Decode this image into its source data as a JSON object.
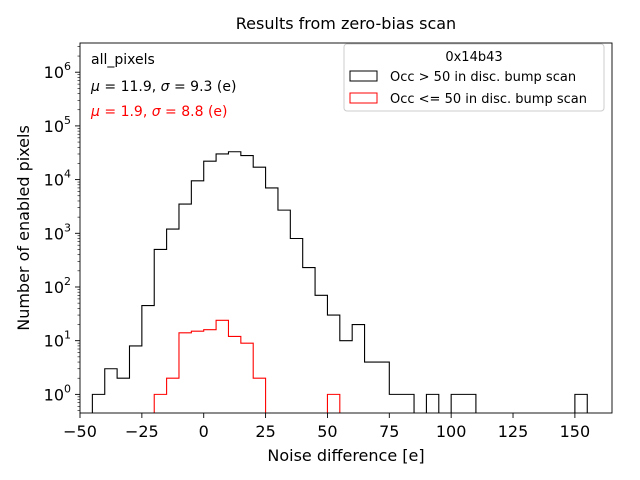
{
  "chart_data": {
    "type": "histogram",
    "title": "Results from zero-bias scan",
    "xlabel": "Noise difference [e]",
    "ylabel": "Number of enabled pixels",
    "xlim": [
      -50,
      165
    ],
    "ylim": [
      0.45,
      3500000
    ],
    "yscale": "log",
    "bin_width": 5,
    "x_ticks": [
      -50,
      -25,
      0,
      25,
      50,
      75,
      100,
      125,
      150
    ],
    "x_tick_labels": [
      "−50",
      "−25",
      "0",
      "25",
      "50",
      "75",
      "100",
      "125",
      "150"
    ],
    "y_ticks": [
      1,
      10,
      100,
      1000,
      10000,
      100000,
      1000000
    ],
    "y_tick_labels": [
      {
        "base": "10",
        "exp": "0"
      },
      {
        "base": "10",
        "exp": "1"
      },
      {
        "base": "10",
        "exp": "2"
      },
      {
        "base": "10",
        "exp": "3"
      },
      {
        "base": "10",
        "exp": "4"
      },
      {
        "base": "10",
        "exp": "5"
      },
      {
        "base": "10",
        "exp": "6"
      }
    ],
    "series": [
      {
        "name": "Occ > 50 in disc. bump scan",
        "color": "#000000",
        "bins": [
          [
            -45,
            1
          ],
          [
            -40,
            3
          ],
          [
            -35,
            2
          ],
          [
            -30,
            8
          ],
          [
            -25,
            45
          ],
          [
            -20,
            500
          ],
          [
            -15,
            1200
          ],
          [
            -10,
            3500
          ],
          [
            -5,
            9500
          ],
          [
            0,
            22000
          ],
          [
            5,
            30000
          ],
          [
            10,
            33000
          ],
          [
            15,
            28000
          ],
          [
            20,
            17000
          ],
          [
            25,
            7000
          ],
          [
            30,
            2700
          ],
          [
            35,
            800
          ],
          [
            40,
            230
          ],
          [
            45,
            70
          ],
          [
            50,
            30
          ],
          [
            55,
            10
          ],
          [
            60,
            20
          ],
          [
            65,
            4
          ],
          [
            70,
            4
          ],
          [
            75,
            1
          ],
          [
            80,
            1
          ],
          [
            90,
            1
          ],
          [
            100,
            1
          ],
          [
            105,
            1
          ],
          [
            150,
            1
          ]
        ]
      },
      {
        "name": "Occ <= 50 in disc. bump scan",
        "color": "#ff0000",
        "bins": [
          [
            -20,
            1
          ],
          [
            -15,
            2
          ],
          [
            -10,
            14
          ],
          [
            -5,
            15
          ],
          [
            0,
            16
          ],
          [
            5,
            24
          ],
          [
            10,
            12
          ],
          [
            15,
            9
          ],
          [
            20,
            2
          ],
          [
            50,
            1
          ]
        ]
      }
    ],
    "legend": {
      "title": "0x14b43",
      "placement": "top-right",
      "entries": [
        "Occ > 50 in disc. bump scan",
        "Occ <= 50 in disc. bump scan"
      ]
    },
    "annotations": [
      {
        "text": "all_pixels",
        "color": "#000000"
      },
      {
        "mu_label": "μ",
        "mu": "11.9",
        "sigma_label": "σ",
        "sigma": "9.3",
        "unit": "(e)",
        "color": "#000000"
      },
      {
        "mu_label": "μ",
        "mu": "1.9",
        "sigma_label": "σ",
        "sigma": "8.8",
        "unit": "(e)",
        "color": "#ff0000"
      }
    ]
  }
}
